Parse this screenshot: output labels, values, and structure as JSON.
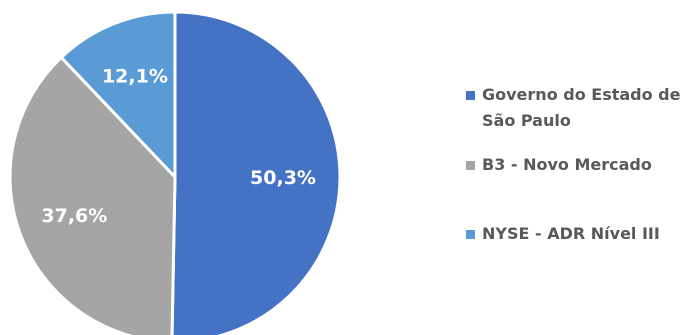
{
  "chart_data": {
    "type": "pie",
    "title": "",
    "slices": [
      {
        "label": "Governo do Estado de São Paulo",
        "value": 50.3,
        "display": "50,3%",
        "color": "#4472C4"
      },
      {
        "label": "B3 - Novo Mercado",
        "value": 37.6,
        "display": "37,6%",
        "color": "#A5A5A5"
      },
      {
        "label": "NYSE - ADR Nível III",
        "value": 12.1,
        "display": "12,1%",
        "color": "#5B9BD5"
      }
    ],
    "legend_position": "right"
  }
}
